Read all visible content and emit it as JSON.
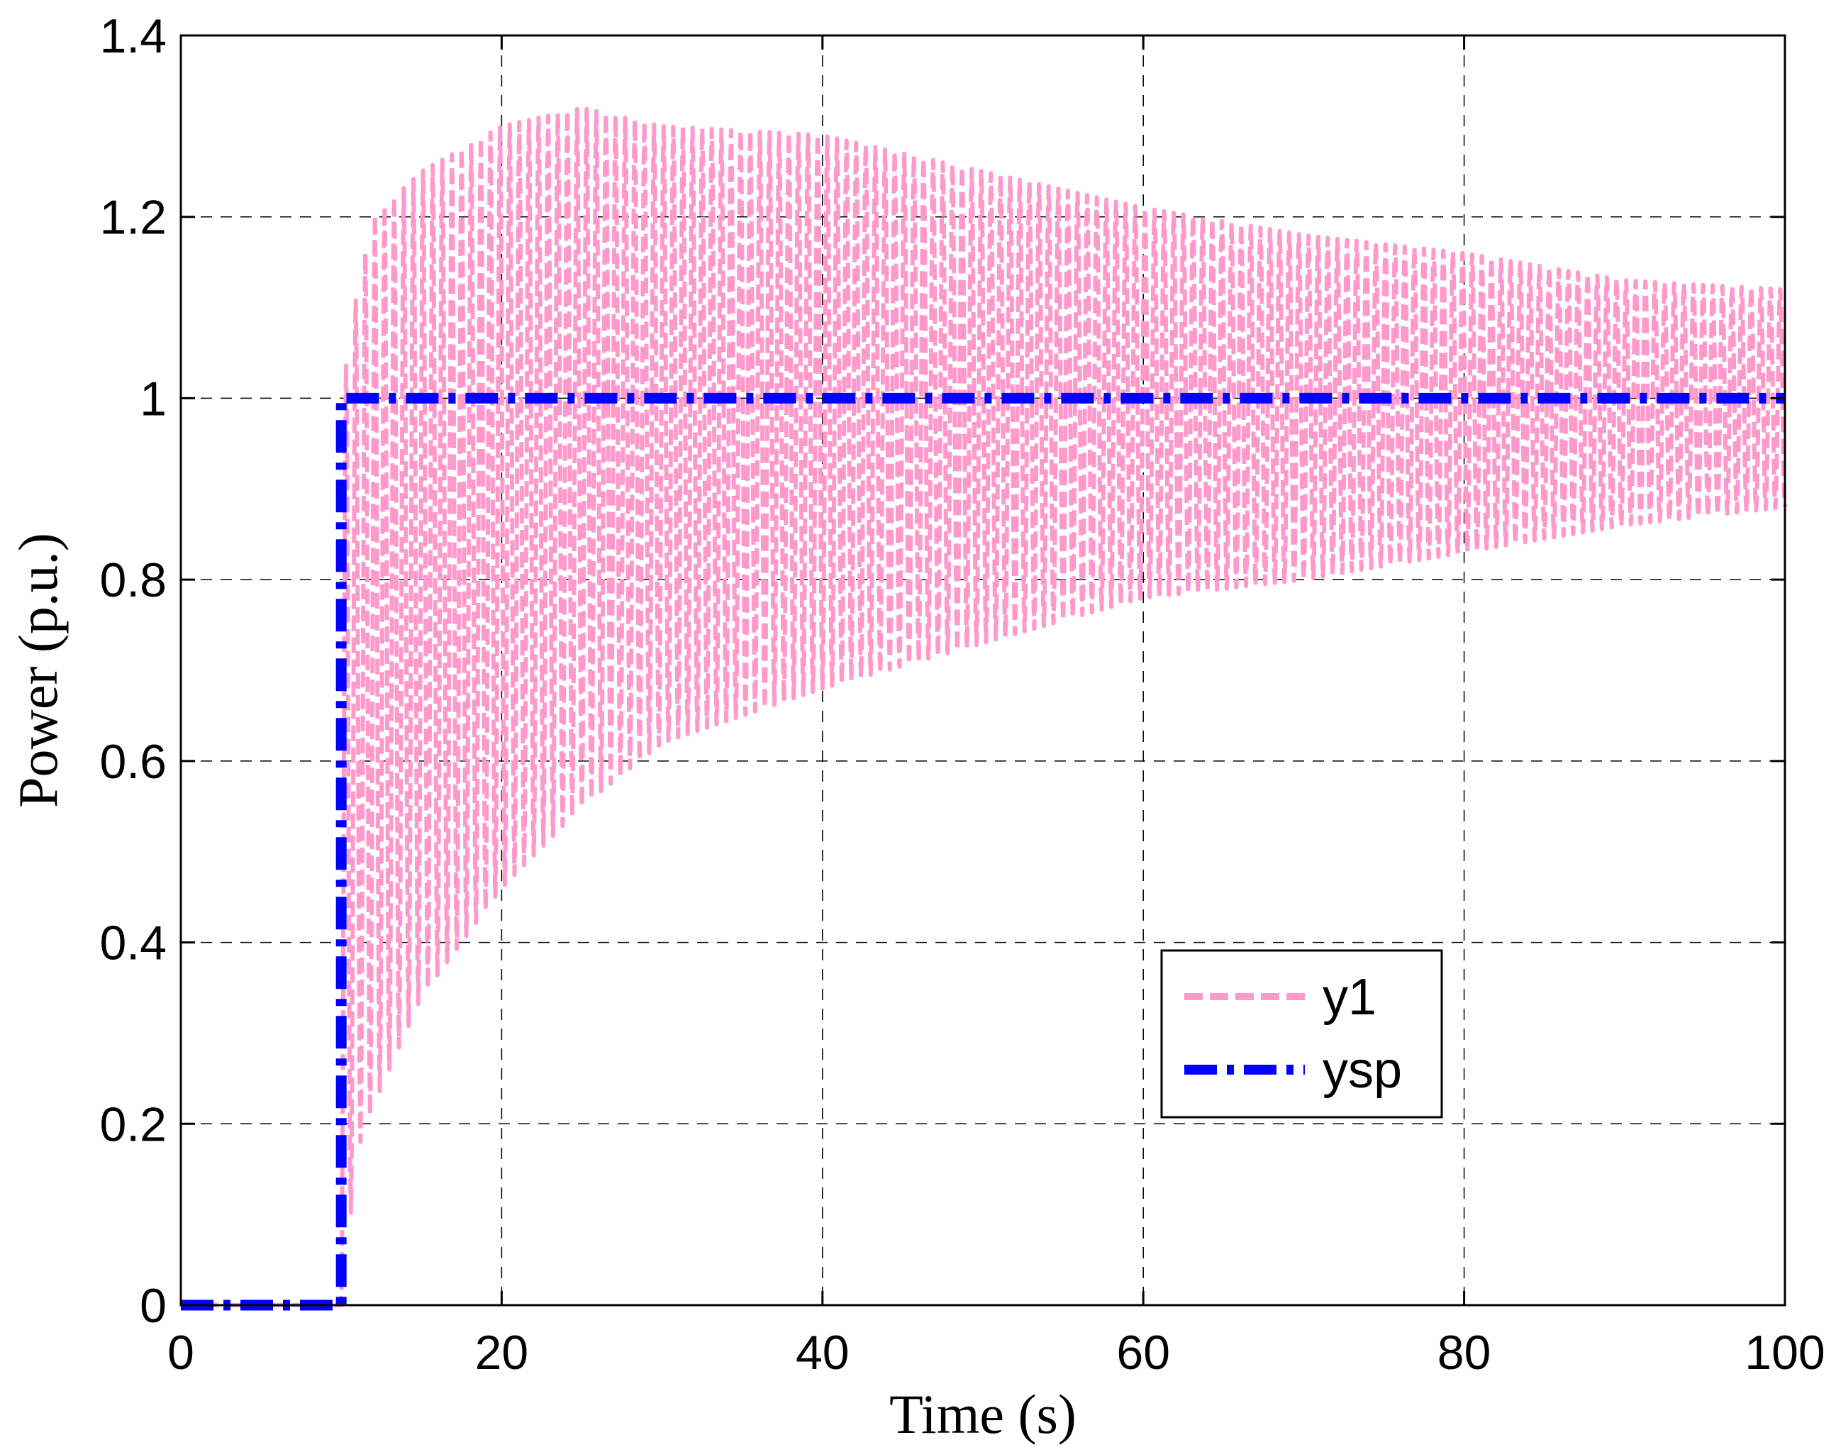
{
  "chart_data": {
    "type": "line",
    "title": "",
    "xlabel": "Time (s)",
    "ylabel": "Power (p.u.)",
    "xlim": [
      0,
      100
    ],
    "ylim": [
      0,
      1.4
    ],
    "xticks": [
      0,
      20,
      40,
      60,
      80,
      100
    ],
    "yticks": [
      0,
      0.2,
      0.4,
      0.6,
      0.8,
      1,
      1.2,
      1.4
    ],
    "xtick_labels": [
      "0",
      "20",
      "40",
      "60",
      "80",
      "100"
    ],
    "ytick_labels": [
      "0",
      "0.2",
      "0.4",
      "0.6",
      "0.8",
      "1",
      "1.2",
      "1.4"
    ],
    "grid": true,
    "legend_position": "lower-right",
    "series": [
      {
        "name": "y1",
        "style": "dashed",
        "color": "#ff99cc",
        "description_values": {
          "step_time": 10,
          "oscillation_period": 0.6,
          "upper_envelope": [
            [
              10,
              1.0
            ],
            [
              11,
              1.12
            ],
            [
              12,
              1.2
            ],
            [
              15,
              1.25
            ],
            [
              20,
              1.3
            ],
            [
              25,
              1.32
            ],
            [
              30,
              1.3
            ],
            [
              40,
              1.29
            ],
            [
              50,
              1.25
            ],
            [
              60,
              1.21
            ],
            [
              70,
              1.18
            ],
            [
              80,
              1.16
            ],
            [
              90,
              1.13
            ],
            [
              100,
              1.12
            ]
          ],
          "lower_envelope": [
            [
              10,
              0.0
            ],
            [
              11,
              0.17
            ],
            [
              12,
              0.22
            ],
            [
              15,
              0.34
            ],
            [
              20,
              0.46
            ],
            [
              25,
              0.55
            ],
            [
              30,
              0.62
            ],
            [
              40,
              0.68
            ],
            [
              50,
              0.73
            ],
            [
              60,
              0.78
            ],
            [
              70,
              0.8
            ],
            [
              80,
              0.83
            ],
            [
              90,
              0.86
            ],
            [
              100,
              0.88
            ]
          ]
        }
      },
      {
        "name": "ysp",
        "style": "dash-dot",
        "color": "#0000ff",
        "x": [
          0,
          10,
          10,
          100
        ],
        "y": [
          0,
          0,
          1,
          1
        ]
      }
    ]
  }
}
